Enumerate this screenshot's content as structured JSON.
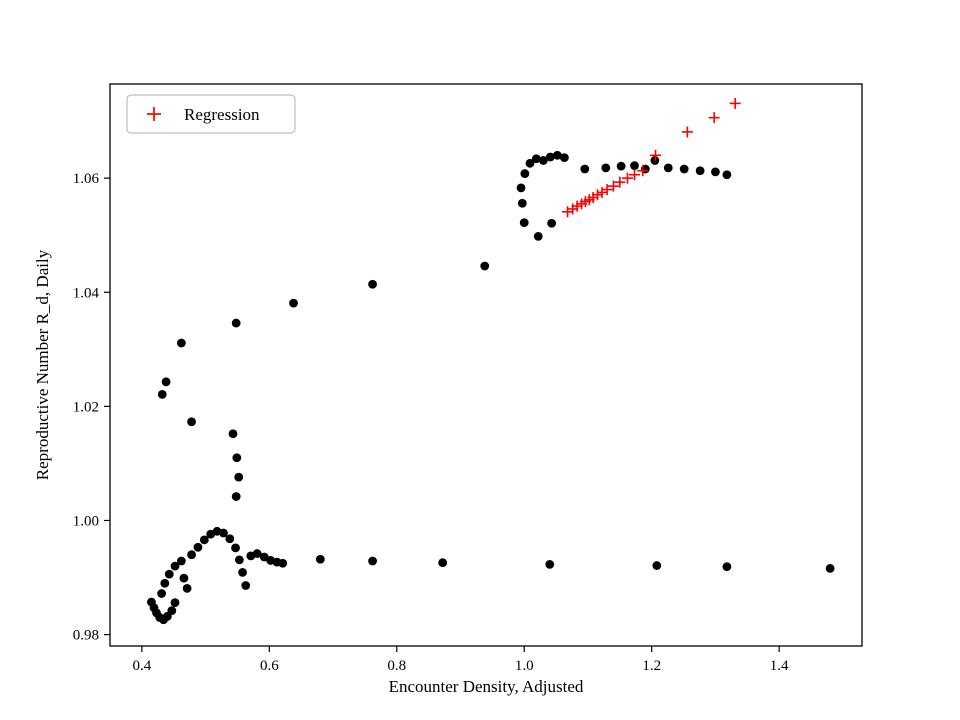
{
  "figure": {
    "background": "#ffffff",
    "frame_color": "#000000"
  },
  "chart_data": {
    "type": "scatter",
    "title": "",
    "xlabel": "Encounter Density, Adjusted",
    "ylabel": "Reproductive Number R_d, Daily",
    "xlim": [
      0.35,
      1.53
    ],
    "ylim": [
      0.978,
      1.0765
    ],
    "xtick_values": [
      0.4,
      0.6,
      0.8,
      1.0,
      1.2,
      1.4
    ],
    "xtick_labels": [
      "0.4",
      "0.6",
      "0.8",
      "1.0",
      "1.2",
      "1.4"
    ],
    "ytick_values": [
      0.98,
      1.0,
      1.02,
      1.04,
      1.06
    ],
    "ytick_labels": [
      "0.98",
      "1.00",
      "1.02",
      "1.04",
      "1.06"
    ],
    "grid": false,
    "legend": {
      "position": "upper left",
      "entries": [
        {
          "label": "Regression",
          "marker": "plus",
          "color": "#ff0000"
        }
      ]
    },
    "series": [
      {
        "name": "observations",
        "marker": "circle",
        "color": "#000000",
        "points": [
          [
            0.415,
            0.9857
          ],
          [
            0.419,
            0.9847
          ],
          [
            0.423,
            0.9838
          ],
          [
            0.428,
            0.983
          ],
          [
            0.434,
            0.9826
          ],
          [
            0.44,
            0.9832
          ],
          [
            0.447,
            0.9842
          ],
          [
            0.452,
            0.9856
          ],
          [
            0.431,
            0.9872
          ],
          [
            0.436,
            0.989
          ],
          [
            0.443,
            0.9906
          ],
          [
            0.452,
            0.992
          ],
          [
            0.462,
            0.9929
          ],
          [
            0.466,
            0.9899
          ],
          [
            0.471,
            0.9881
          ],
          [
            0.478,
            0.994
          ],
          [
            0.488,
            0.9953
          ],
          [
            0.498,
            0.9966
          ],
          [
            0.508,
            0.9976
          ],
          [
            0.518,
            0.9981
          ],
          [
            0.528,
            0.9978
          ],
          [
            0.538,
            0.9968
          ],
          [
            0.547,
            0.9952
          ],
          [
            0.553,
            0.9931
          ],
          [
            0.558,
            0.9909
          ],
          [
            0.563,
            0.9886
          ],
          [
            0.571,
            0.9938
          ],
          [
            0.581,
            0.9942
          ],
          [
            0.592,
            0.9936
          ],
          [
            0.602,
            0.993
          ],
          [
            0.612,
            0.9927
          ],
          [
            0.621,
            0.9925
          ],
          [
            0.68,
            0.9932
          ],
          [
            0.762,
            0.9929
          ],
          [
            0.872,
            0.9926
          ],
          [
            1.04,
            0.9923
          ],
          [
            1.208,
            0.9921
          ],
          [
            1.318,
            0.9919
          ],
          [
            1.48,
            0.9916
          ],
          [
            0.548,
            1.0042
          ],
          [
            0.552,
            1.0076
          ],
          [
            0.549,
            1.011
          ],
          [
            0.543,
            1.0152
          ],
          [
            0.478,
            1.0173
          ],
          [
            0.432,
            1.0221
          ],
          [
            0.438,
            1.0243
          ],
          [
            0.462,
            1.0311
          ],
          [
            0.548,
            1.0346
          ],
          [
            0.638,
            1.0381
          ],
          [
            0.762,
            1.0414
          ],
          [
            0.938,
            1.0446
          ],
          [
            1.0,
            1.0522
          ],
          [
            0.997,
            1.0556
          ],
          [
            0.995,
            1.0583
          ],
          [
            1.001,
            1.0608
          ],
          [
            1.009,
            1.0626
          ],
          [
            1.019,
            1.0634
          ],
          [
            1.03,
            1.0631
          ],
          [
            1.041,
            1.0637
          ],
          [
            1.052,
            1.064
          ],
          [
            1.063,
            1.0636
          ],
          [
            1.022,
            1.0498
          ],
          [
            1.043,
            1.0521
          ],
          [
            1.095,
            1.0616
          ],
          [
            1.128,
            1.0618
          ],
          [
            1.152,
            1.0621
          ],
          [
            1.173,
            1.0622
          ],
          [
            1.19,
            1.0616
          ],
          [
            1.205,
            1.0631
          ],
          [
            1.226,
            1.0618
          ],
          [
            1.251,
            1.0616
          ],
          [
            1.276,
            1.0613
          ],
          [
            1.3,
            1.0611
          ],
          [
            1.318,
            1.0606
          ]
        ]
      },
      {
        "name": "Regression",
        "marker": "plus",
        "color": "#ff0000",
        "points": [
          [
            1.068,
            1.0541
          ],
          [
            1.076,
            1.0546
          ],
          [
            1.083,
            1.0551
          ],
          [
            1.09,
            1.0555
          ],
          [
            1.096,
            1.0559
          ],
          [
            1.102,
            1.0562
          ],
          [
            1.108,
            1.0566
          ],
          [
            1.115,
            1.0571
          ],
          [
            1.122,
            1.0575
          ],
          [
            1.13,
            1.058
          ],
          [
            1.14,
            1.0586
          ],
          [
            1.15,
            1.0593
          ],
          [
            1.162,
            1.06
          ],
          [
            1.173,
            1.0606
          ],
          [
            1.186,
            1.0613
          ],
          [
            1.206,
            1.064
          ],
          [
            1.256,
            1.0681
          ],
          [
            1.298,
            1.0706
          ],
          [
            1.331,
            1.0731
          ]
        ]
      }
    ]
  }
}
